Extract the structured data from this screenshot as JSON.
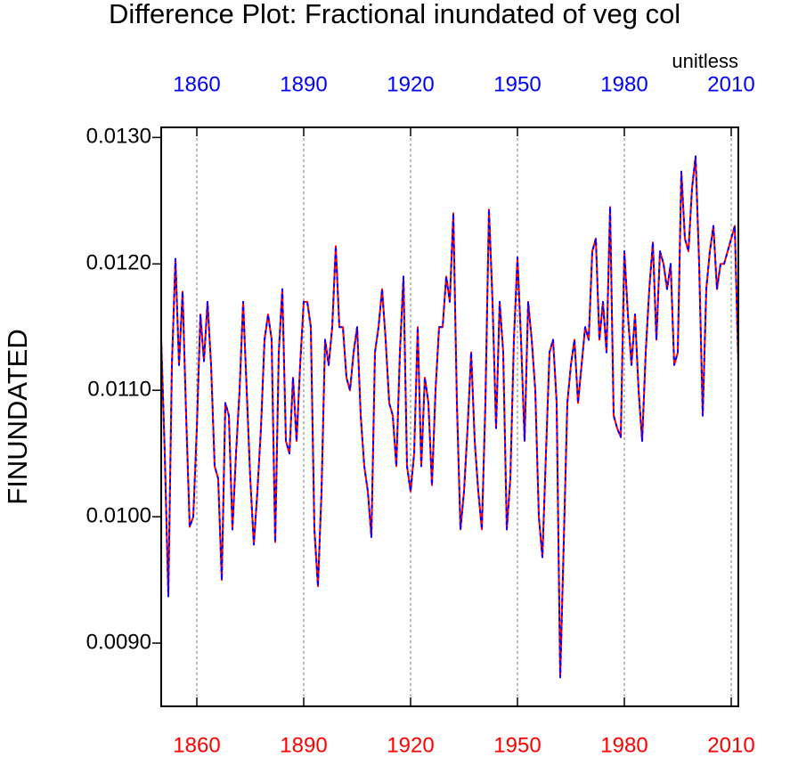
{
  "chart_data": {
    "type": "line",
    "title": "Difference Plot: Fractional inundated of veg col",
    "subtitle": "unitless",
    "y_label": "FINUNDATED",
    "x": [
      1850,
      1851,
      1852,
      1853,
      1854,
      1855,
      1856,
      1857,
      1858,
      1859,
      1860,
      1861,
      1862,
      1863,
      1864,
      1865,
      1866,
      1867,
      1868,
      1869,
      1870,
      1871,
      1872,
      1873,
      1874,
      1875,
      1876,
      1877,
      1878,
      1879,
      1880,
      1881,
      1882,
      1883,
      1884,
      1885,
      1886,
      1887,
      1888,
      1889,
      1890,
      1891,
      1892,
      1893,
      1894,
      1895,
      1896,
      1897,
      1898,
      1899,
      1900,
      1901,
      1902,
      1903,
      1904,
      1905,
      1906,
      1907,
      1908,
      1909,
      1910,
      1911,
      1912,
      1913,
      1914,
      1915,
      1916,
      1917,
      1918,
      1919,
      1920,
      1921,
      1922,
      1923,
      1924,
      1925,
      1926,
      1927,
      1928,
      1929,
      1930,
      1931,
      1932,
      1933,
      1934,
      1935,
      1936,
      1937,
      1938,
      1939,
      1940,
      1941,
      1942,
      1943,
      1944,
      1945,
      1946,
      1947,
      1948,
      1949,
      1950,
      1951,
      1952,
      1953,
      1954,
      1955,
      1956,
      1957,
      1958,
      1959,
      1960,
      1961,
      1962,
      1963,
      1964,
      1965,
      1966,
      1967,
      1968,
      1969,
      1970,
      1971,
      1972,
      1973,
      1974,
      1975,
      1976,
      1977,
      1978,
      1979,
      1980,
      1981,
      1982,
      1983,
      1984,
      1985,
      1986,
      1987,
      1988,
      1989,
      1990,
      1991,
      1992,
      1993,
      1994,
      1995,
      1996,
      1997,
      1998,
      1999,
      2000,
      2001,
      2002,
      2003,
      2004,
      2005,
      2006,
      2007,
      2008,
      2009,
      2010,
      2011,
      2012
    ],
    "series": [
      {
        "color": "#ff0000",
        "dashed": false,
        "values": [
          0.0114,
          0.0105,
          0.00937,
          0.0112,
          0.01204,
          0.0112,
          0.01178,
          0.0108,
          0.00992,
          0.01,
          0.0107,
          0.0116,
          0.01123,
          0.0117,
          0.0112,
          0.0104,
          0.0103,
          0.0095,
          0.0109,
          0.0108,
          0.0099,
          0.0105,
          0.011,
          0.0117,
          0.011,
          0.0103,
          0.00978,
          0.0102,
          0.0107,
          0.0114,
          0.0116,
          0.0114,
          0.0098,
          0.0113,
          0.0118,
          0.0106,
          0.0105,
          0.0111,
          0.0106,
          0.0112,
          0.0117,
          0.0117,
          0.0115,
          0.0099,
          0.00945,
          0.0102,
          0.0114,
          0.0112,
          0.0115,
          0.01214,
          0.0115,
          0.0115,
          0.0111,
          0.011,
          0.0113,
          0.0115,
          0.0108,
          0.0104,
          0.0102,
          0.00984,
          0.0113,
          0.0115,
          0.0118,
          0.0114,
          0.0109,
          0.0108,
          0.0104,
          0.0113,
          0.0119,
          0.0104,
          0.0102,
          0.0105,
          0.0115,
          0.0104,
          0.0111,
          0.0109,
          0.01025,
          0.011,
          0.0115,
          0.0115,
          0.0119,
          0.0117,
          0.0124,
          0.0109,
          0.0099,
          0.0102,
          0.0107,
          0.0113,
          0.0106,
          0.0102,
          0.0099,
          0.0109,
          0.01243,
          0.0117,
          0.0107,
          0.0117,
          0.0113,
          0.0099,
          0.0103,
          0.0114,
          0.01205,
          0.0114,
          0.0106,
          0.0117,
          0.0114,
          0.011,
          0.01,
          0.00968,
          0.0105,
          0.0113,
          0.0114,
          0.0109,
          0.00873,
          0.0098,
          0.0109,
          0.0112,
          0.0114,
          0.0109,
          0.0112,
          0.0115,
          0.0114,
          0.0121,
          0.0122,
          0.0114,
          0.0117,
          0.0113,
          0.01245,
          0.0108,
          0.0107,
          0.01063,
          0.0121,
          0.0116,
          0.0112,
          0.0116,
          0.011,
          0.0106,
          0.0113,
          0.0118,
          0.01217,
          0.0114,
          0.0121,
          0.012,
          0.0118,
          0.012,
          0.0112,
          0.0113,
          0.01273,
          0.0122,
          0.0121,
          0.0126,
          0.01285,
          0.012,
          0.0108,
          0.0118,
          0.0121,
          0.0123,
          0.0118,
          0.012,
          0.012,
          0.0121,
          0.0122,
          0.0123,
          0.0112
        ]
      },
      {
        "color": "#0000ff",
        "dashed": true,
        "values": [
          0.0114,
          0.0105,
          0.00937,
          0.0112,
          0.01204,
          0.0112,
          0.01178,
          0.0108,
          0.00992,
          0.01,
          0.0107,
          0.0116,
          0.01123,
          0.0117,
          0.0112,
          0.0104,
          0.0103,
          0.0095,
          0.0109,
          0.0108,
          0.0099,
          0.0105,
          0.011,
          0.0117,
          0.011,
          0.0103,
          0.00978,
          0.0102,
          0.0107,
          0.0114,
          0.0116,
          0.0114,
          0.0098,
          0.0113,
          0.0118,
          0.0106,
          0.0105,
          0.0111,
          0.0106,
          0.0112,
          0.0117,
          0.0117,
          0.0115,
          0.0099,
          0.00945,
          0.0102,
          0.0114,
          0.0112,
          0.0115,
          0.01214,
          0.0115,
          0.0115,
          0.0111,
          0.011,
          0.0113,
          0.0115,
          0.0108,
          0.0104,
          0.0102,
          0.00984,
          0.0113,
          0.0115,
          0.0118,
          0.0114,
          0.0109,
          0.0108,
          0.0104,
          0.0113,
          0.0119,
          0.0104,
          0.0102,
          0.0105,
          0.0115,
          0.0104,
          0.0111,
          0.0109,
          0.01025,
          0.011,
          0.0115,
          0.0115,
          0.0119,
          0.0117,
          0.0124,
          0.0109,
          0.0099,
          0.0102,
          0.0107,
          0.0113,
          0.0106,
          0.0102,
          0.0099,
          0.0109,
          0.01243,
          0.0117,
          0.0107,
          0.0117,
          0.0113,
          0.0099,
          0.0103,
          0.0114,
          0.01205,
          0.0114,
          0.0106,
          0.0117,
          0.0114,
          0.011,
          0.01,
          0.00968,
          0.0105,
          0.0113,
          0.0114,
          0.0109,
          0.00873,
          0.0098,
          0.0109,
          0.0112,
          0.0114,
          0.0109,
          0.0112,
          0.0115,
          0.0114,
          0.0121,
          0.0122,
          0.0114,
          0.0117,
          0.0113,
          0.01245,
          0.0108,
          0.0107,
          0.01063,
          0.0121,
          0.0116,
          0.0112,
          0.0116,
          0.011,
          0.0106,
          0.0113,
          0.0118,
          0.01217,
          0.0114,
          0.0121,
          0.012,
          0.0118,
          0.012,
          0.0112,
          0.0113,
          0.01273,
          0.0122,
          0.0121,
          0.0126,
          0.01285,
          0.012,
          0.0108,
          0.0118,
          0.0121,
          0.0123,
          0.0118,
          0.012,
          0.012,
          0.0121,
          0.0122,
          0.0123,
          0.0112
        ]
      }
    ],
    "xlim": [
      1850,
      2012
    ],
    "xticks": [
      1860,
      1890,
      1920,
      1950,
      1980,
      2010
    ],
    "ylim": [
      0.0085,
      0.01308
    ],
    "yticks": [
      {
        "value": 0.009,
        "label": "0.0090"
      },
      {
        "value": 0.01,
        "label": "0.0100"
      },
      {
        "value": 0.011,
        "label": "0.0110"
      },
      {
        "value": 0.012,
        "label": "0.0120"
      },
      {
        "value": 0.013,
        "label": "0.0130"
      }
    ],
    "x_tick_label_color": "#ff0000",
    "top_tick_label_color": "#0000ff",
    "grid": "x"
  }
}
